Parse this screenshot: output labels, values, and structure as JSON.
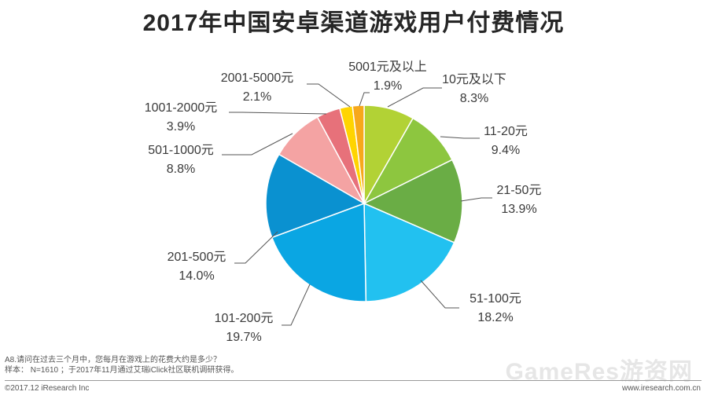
{
  "header": {
    "title": "2017年中国安卓渠道游戏用户付费情况"
  },
  "chart_data": {
    "type": "pie",
    "title": "2017年中国安卓渠道游戏用户付费情况",
    "slices": [
      {
        "label": "10元及以下",
        "value": 8.3,
        "pct": "8.3%",
        "color": "#b2d235"
      },
      {
        "label": "11-20元",
        "value": 9.4,
        "pct": "9.4%",
        "color": "#8dc63f"
      },
      {
        "label": "21-50元",
        "value": 13.9,
        "pct": "13.9%",
        "color": "#6aad45"
      },
      {
        "label": "51-100元",
        "value": 18.2,
        "pct": "18.2%",
        "color": "#22c1f0"
      },
      {
        "label": "101-200元",
        "value": 19.7,
        "pct": "19.7%",
        "color": "#0aa6e3"
      },
      {
        "label": "201-500元",
        "value": 14.0,
        "pct": "14.0%",
        "color": "#0a91d0"
      },
      {
        "label": "501-1000元",
        "value": 8.8,
        "pct": "8.8%",
        "color": "#f4a3a3"
      },
      {
        "label": "1001-2000元",
        "value": 3.9,
        "pct": "3.9%",
        "color": "#e7717a"
      },
      {
        "label": "2001-5000元",
        "value": 2.1,
        "pct": "2.1%",
        "color": "#ffd400"
      },
      {
        "label": "5001元及以上",
        "value": 1.9,
        "pct": "1.9%",
        "color": "#f7a81b"
      }
    ]
  },
  "notes": {
    "question": "A8.请问在过去三个月中，您每月在游戏上的花费大约是多少？",
    "sample": "样本： N=1610 ；于2017年11月通过艾瑞iClick社区联机调研获得。"
  },
  "footer": {
    "copyright": "©2017.12 iResearch Inc",
    "website": "www.iresearch.com.cn",
    "watermark": "GameRes游资网"
  }
}
